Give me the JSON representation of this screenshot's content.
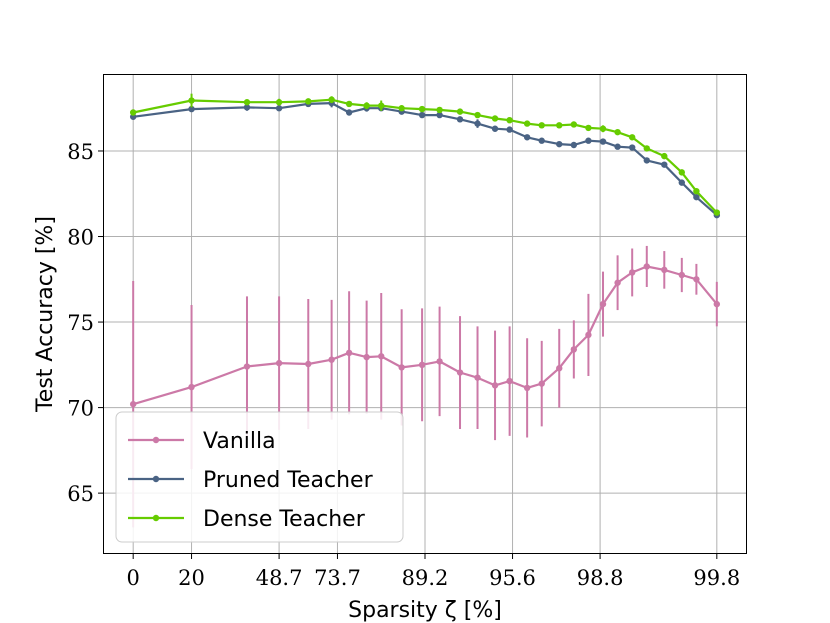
{
  "chart_data": {
    "type": "line",
    "title": "",
    "xlabel": "Sparsity ζ [%]",
    "ylabel": "Test Accuracy [%]",
    "x_tick_labels": [
      "0",
      "20",
      "48.7",
      "73.7",
      "89.2",
      "95.6",
      "98.8",
      "99.8"
    ],
    "x_tick_positions": [
      0,
      2,
      5,
      7,
      10,
      13,
      16,
      20
    ],
    "y_ticks": [
      65,
      70,
      75,
      80,
      85
    ],
    "ylim": [
      61.5,
      89.5
    ],
    "xlim": [
      -1,
      21
    ],
    "grid": true,
    "legend_position": "lower-left",
    "series": [
      {
        "name": "Vanilla",
        "color": "#cc79a7",
        "x": [
          0,
          2,
          3.9,
          5,
          6,
          6.8,
          7.4,
          8,
          8.5,
          9.2,
          9.9,
          10.5,
          11.2,
          11.8,
          12.4,
          12.9,
          13.5,
          14,
          14.6,
          15.1,
          15.6,
          16.1,
          16.6,
          17.1,
          17.6,
          18.2,
          18.8,
          19.3,
          20
        ],
        "y": [
          70.2,
          71.2,
          72.4,
          72.6,
          72.55,
          72.8,
          73.2,
          72.95,
          73.0,
          72.35,
          72.5,
          72.7,
          72.05,
          71.75,
          71.3,
          71.55,
          71.15,
          71.4,
          72.3,
          73.4,
          74.25,
          76.05,
          77.3,
          77.9,
          78.25,
          78.05,
          77.75,
          77.5,
          76.05
        ],
        "err": [
          7.2,
          4.8,
          4.1,
          3.9,
          3.8,
          3.5,
          3.6,
          3.3,
          3.7,
          3.4,
          3.3,
          3.2,
          3.3,
          3.0,
          3.2,
          3.2,
          2.9,
          2.5,
          2.3,
          1.7,
          2.4,
          1.9,
          1.6,
          1.4,
          1.2,
          1.1,
          1.0,
          0.9,
          1.3
        ]
      },
      {
        "name": "Pruned Teacher",
        "color": "#4a6384",
        "x": [
          0,
          2,
          3.9,
          5,
          6,
          6.8,
          7.4,
          8,
          8.5,
          9.2,
          9.9,
          10.5,
          11.2,
          11.8,
          12.4,
          12.9,
          13.5,
          14,
          14.6,
          15.1,
          15.6,
          16.1,
          16.6,
          17.1,
          17.6,
          18.2,
          18.8,
          19.3,
          20
        ],
        "y": [
          87.0,
          87.45,
          87.55,
          87.5,
          87.75,
          87.8,
          87.25,
          87.5,
          87.5,
          87.3,
          87.1,
          87.1,
          86.85,
          86.6,
          86.3,
          86.25,
          85.8,
          85.6,
          85.4,
          85.35,
          85.6,
          85.55,
          85.25,
          85.2,
          84.45,
          84.2,
          83.15,
          82.3,
          81.25
        ],
        "err": [
          0.1,
          0.15,
          0.2,
          0.1,
          0.15,
          0.25,
          0.15,
          0.2,
          0.1,
          0.15,
          0.15,
          0.1,
          0.15,
          0.25,
          0.15,
          0.1,
          0.1,
          0.1,
          0.1,
          0.1,
          0.1,
          0.1,
          0.1,
          0.1,
          0.1,
          0.1,
          0.1,
          0.1,
          0.1
        ]
      },
      {
        "name": "Dense Teacher",
        "color": "#66cc00",
        "x": [
          0,
          2,
          3.9,
          5,
          6,
          6.8,
          7.4,
          8,
          8.5,
          9.2,
          9.9,
          10.5,
          11.2,
          11.8,
          12.4,
          12.9,
          13.5,
          14,
          14.6,
          15.1,
          15.6,
          16.1,
          16.6,
          17.1,
          17.6,
          18.2,
          18.8,
          19.3,
          20
        ],
        "y": [
          87.25,
          87.95,
          87.85,
          87.85,
          87.9,
          88.0,
          87.75,
          87.65,
          87.65,
          87.5,
          87.45,
          87.4,
          87.3,
          87.1,
          86.9,
          86.8,
          86.6,
          86.5,
          86.5,
          86.55,
          86.35,
          86.3,
          86.1,
          85.8,
          85.15,
          84.7,
          83.75,
          82.65,
          81.4
        ],
        "err": [
          0.15,
          0.4,
          0.15,
          0.2,
          0.15,
          0.2,
          0.15,
          0.2,
          0.3,
          0.15,
          0.15,
          0.1,
          0.15,
          0.1,
          0.1,
          0.1,
          0.1,
          0.1,
          0.1,
          0.1,
          0.1,
          0.2,
          0.1,
          0.1,
          0.1,
          0.1,
          0.1,
          0.1,
          0.1
        ]
      }
    ]
  }
}
